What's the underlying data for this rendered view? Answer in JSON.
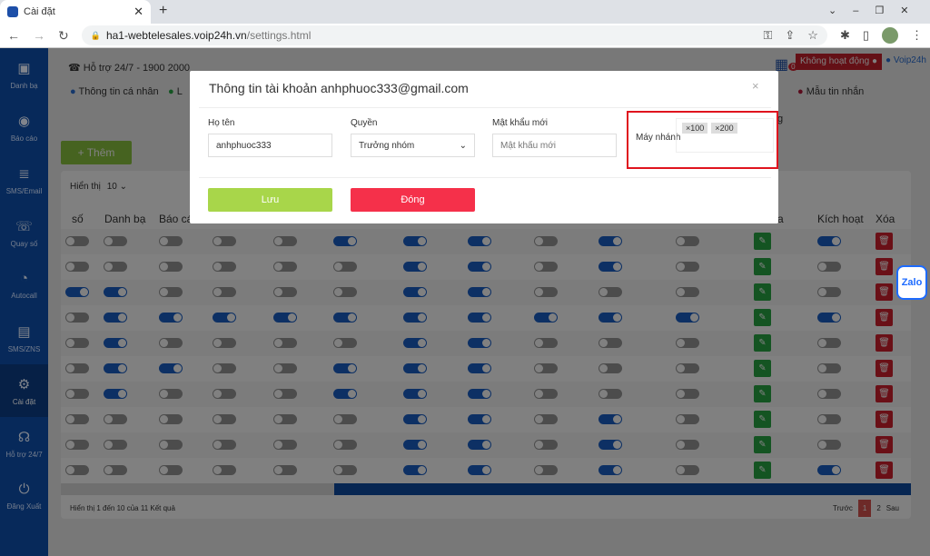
{
  "browser": {
    "tab_title": "Cài đặt",
    "url_host": "ha1-webtelesales.voip24h.vn",
    "url_path": "/settings.html"
  },
  "sidebar": {
    "items": [
      {
        "label": "Danh bạ",
        "icon": "contacts-icon"
      },
      {
        "label": "Báo cáo",
        "icon": "report-icon"
      },
      {
        "label": "SMS/Email",
        "icon": "server-icon"
      },
      {
        "label": "Quay số",
        "icon": "dial-icon"
      },
      {
        "label": "Autocall",
        "icon": "head-icon"
      },
      {
        "label": "SMS/ZNS",
        "icon": "message-icon"
      },
      {
        "label": "Cài đặt",
        "icon": "gear-icon",
        "active": true
      },
      {
        "label": "Hỗ trợ 24/7",
        "icon": "support-icon"
      },
      {
        "label": "Đăng Xuất",
        "icon": "power-icon"
      }
    ]
  },
  "header": {
    "support": "Hỗ trợ 24/7 - 1900 2000",
    "calendar_badge": "0",
    "status": "Không hoạt động",
    "user": "Voip24h"
  },
  "nav": {
    "personal": "Thông tin cá nhân",
    "history_partial": "L",
    "templates": "Mẫu tin nhắn",
    "partial_g": "g"
  },
  "add_button": "+ Thêm",
  "table": {
    "show_label": "Hiển thị",
    "page_size": "10",
    "headers_visible": [
      "số",
      "Danh bạ",
      "Báo cáo",
      "sửa",
      "Kích hoạt",
      "Xóa"
    ],
    "rows": [
      [
        0,
        0,
        0,
        0,
        0,
        1,
        1,
        1,
        0,
        1,
        0,
        1
      ],
      [
        0,
        0,
        0,
        0,
        0,
        0,
        1,
        1,
        0,
        1,
        0,
        0
      ],
      [
        1,
        1,
        0,
        0,
        0,
        0,
        1,
        1,
        0,
        0,
        0,
        0
      ],
      [
        0,
        1,
        1,
        1,
        1,
        1,
        1,
        1,
        1,
        1,
        1,
        1
      ],
      [
        0,
        1,
        0,
        0,
        0,
        0,
        1,
        1,
        0,
        0,
        0,
        0
      ],
      [
        0,
        1,
        1,
        0,
        0,
        1,
        1,
        1,
        0,
        0,
        0,
        0
      ],
      [
        0,
        1,
        0,
        0,
        0,
        1,
        1,
        1,
        0,
        0,
        0,
        0
      ],
      [
        0,
        0,
        0,
        0,
        0,
        0,
        1,
        1,
        0,
        1,
        0,
        0
      ],
      [
        0,
        0,
        0,
        0,
        0,
        0,
        1,
        1,
        0,
        1,
        0,
        0
      ],
      [
        0,
        0,
        0,
        0,
        0,
        0,
        1,
        1,
        0,
        1,
        0,
        1
      ]
    ],
    "footer": "Hiển thị 1 đến 10 của 11 Kết quả",
    "pagination": {
      "prev": "Trước",
      "pages": [
        "1",
        "2"
      ],
      "current": "1",
      "next": "Sau"
    }
  },
  "modal": {
    "title": "Thông tin tài khoản anhphuoc333@gmail.com",
    "name_label": "Họ tên",
    "name_value": "anhphuoc333",
    "role_label": "Quyền",
    "role_value": "Trưởng nhóm",
    "password_label": "Mật khẩu mới",
    "password_placeholder": "Mật khẩu mới",
    "ext_label": "Máy nhánh",
    "extensions": [
      "100",
      "200"
    ],
    "save": "Lưu",
    "close": "Đóng",
    "close_icon": "×"
  },
  "zalo": "Zalo",
  "colors": {
    "sidebar": "#0d4ba3",
    "save": "#a8d64a",
    "close": "#f5304a",
    "highlight": "#e0141e",
    "toggle_on": "#1a5fc8"
  }
}
